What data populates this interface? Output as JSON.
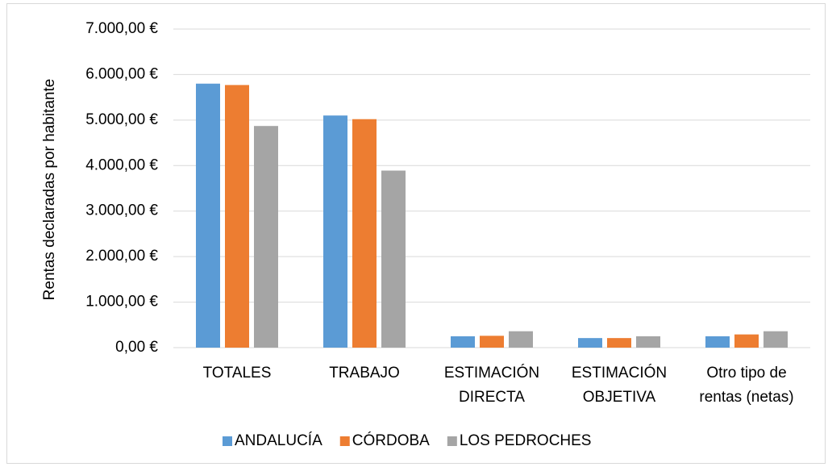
{
  "chart_data": {
    "type": "bar",
    "y_axis_label": "Rentas declaradas por habitante",
    "categories": [
      "TOTALES",
      "TRABAJO",
      "ESTIMACIÓN DIRECTA",
      "ESTIMACIÓN OBJETIVA",
      "Otro tipo de rentas (netas)"
    ],
    "series": [
      {
        "name": "ANDALUCÍA",
        "color": "#5b9bd5",
        "values": [
          5800,
          5100,
          250,
          210,
          250
        ]
      },
      {
        "name": "CÓRDOBA",
        "color": "#ed7d31",
        "values": [
          5770,
          5020,
          260,
          210,
          290
        ]
      },
      {
        "name": "LOS PEDROCHES",
        "color": "#a5a5a5",
        "values": [
          4870,
          3890,
          360,
          250,
          360
        ]
      }
    ],
    "ylim": [
      0,
      7000
    ],
    "yticks": [
      {
        "value": 0,
        "label": "0,00 €"
      },
      {
        "value": 1000,
        "label": "1.000,00 €"
      },
      {
        "value": 2000,
        "label": "2.000,00 €"
      },
      {
        "value": 3000,
        "label": "3.000,00 €"
      },
      {
        "value": 4000,
        "label": "4.000,00 €"
      },
      {
        "value": 5000,
        "label": "5.000,00 €"
      },
      {
        "value": 6000,
        "label": "6.000,00 €"
      },
      {
        "value": 7000,
        "label": "7.000,00 €"
      }
    ],
    "grid": true,
    "legend": "bottom"
  }
}
